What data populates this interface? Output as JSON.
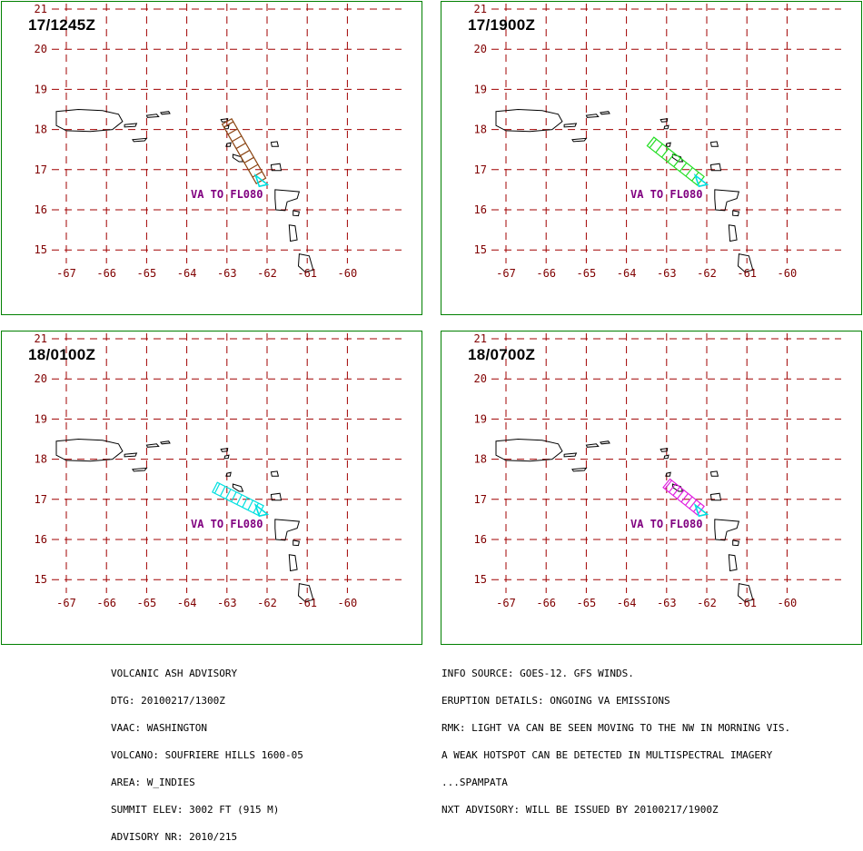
{
  "map": {
    "x_ticks": [
      "-67",
      "-66",
      "-65",
      "-64",
      "-63",
      "-62",
      "-61",
      "-60"
    ],
    "y_ticks": [
      "15",
      "16",
      "17",
      "18",
      "19",
      "20",
      "21"
    ],
    "grid_color": "#a00000",
    "tick_label_color": "#800000",
    "coast_color": "#000000",
    "va_label": "VA TO FL080",
    "va_label_color": "#800080",
    "volcano_color": "#00e0e0"
  },
  "panels": [
    {
      "title": "17/1245Z",
      "ash_color": "#8b4513"
    },
    {
      "title": "17/1900Z",
      "ash_color": "#22dd22"
    },
    {
      "title": "18/0100Z",
      "ash_color": "#00e0e0"
    },
    {
      "title": "18/0700Z",
      "ash_color": "#e020e0"
    }
  ],
  "advisory_left": [
    "VOLCANIC ASH ADVISORY",
    "DTG: 20100217/1300Z",
    "VAAC: WASHINGTON",
    "VOLCANO: SOUFRIERE HILLS 1600-05",
    "AREA: W_INDIES",
    "SUMMIT ELEV: 3002 FT (915 M)",
    "ADVISORY NR: 2010/215"
  ],
  "advisory_right": [
    "INFO SOURCE: GOES-12. GFS WINDS.",
    "ERUPTION DETAILS: ONGOING VA EMISSIONS",
    "RMK: LIGHT VA CAN BE SEEN MOVING TO THE NW IN MORNING VIS.",
    "A WEAK HOTSPOT CAN BE DETECTED IN MULTISPECTRAL IMAGERY",
    "...SPAMPATA",
    "NXT ADVISORY: WILL BE ISSUED BY 20100217/1900Z"
  ]
}
